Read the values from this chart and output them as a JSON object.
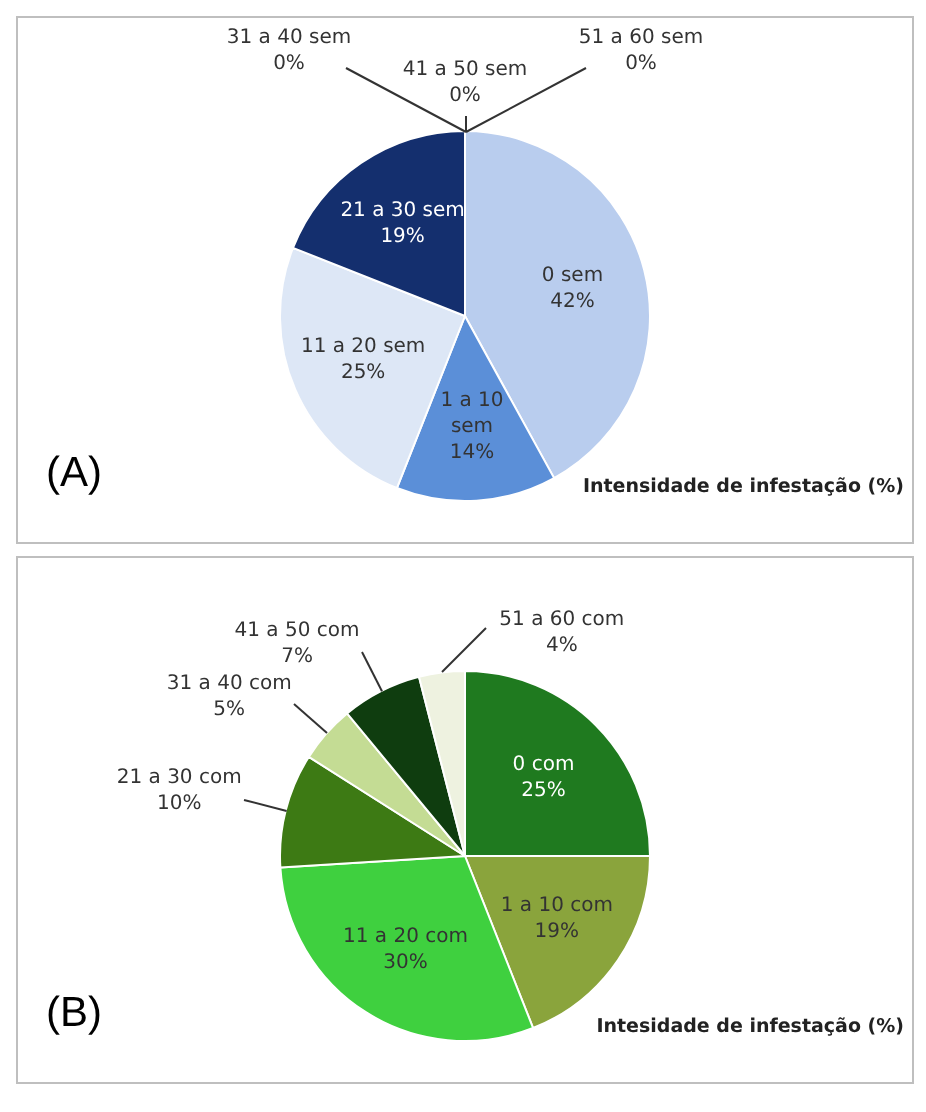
{
  "chart_data": [
    {
      "type": "pie",
      "categories": [
        "0 sem",
        "1 a 10 sem",
        "11 a 20 sem",
        "21 a 30 sem",
        "31 a 40 sem",
        "41 a 50 sem",
        "51 a 60 sem"
      ],
      "values": [
        42,
        14,
        25,
        19,
        0,
        0,
        0
      ],
      "value_labels": [
        "42%",
        "14%",
        "25%",
        "19%",
        "0%",
        "0%",
        "0%"
      ],
      "colors": [
        "#b9cdee",
        "#5b8fd8",
        "#dde7f6",
        "#142f6e",
        "#9fb8e0",
        "#7a9bd0",
        "#c7d6ef"
      ],
      "annotations": [
        "(A)",
        "Intensidade de infestação (%)"
      ]
    },
    {
      "type": "pie",
      "categories": [
        "0 com",
        "1 a 10 com",
        "11 a 20 com",
        "21 a 30 com",
        "31 a 40 com",
        "41 a 50 com",
        "51 a 60 com"
      ],
      "values": [
        25,
        19,
        30,
        10,
        5,
        7,
        4
      ],
      "value_labels": [
        "25%",
        "19%",
        "30%",
        "10%",
        "5%",
        "7%",
        "4%"
      ],
      "colors": [
        "#1f7a1f",
        "#8aa43c",
        "#3fd03f",
        "#3d7a14",
        "#c4dc94",
        "#0f3d0f",
        "#eef2e0"
      ],
      "annotations": [
        "(B)",
        "Intesidade de infestação (%)"
      ]
    }
  ]
}
